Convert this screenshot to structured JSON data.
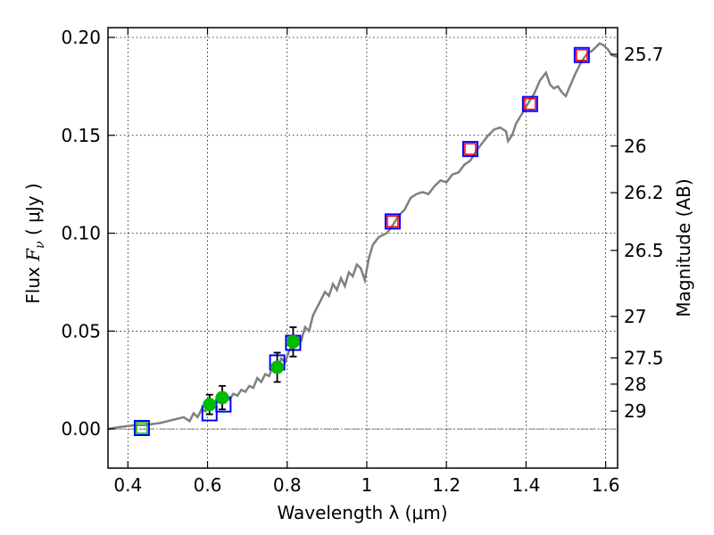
{
  "chart_data": {
    "type": "scatter",
    "xlabel": "Wavelength  λ (μm)",
    "ylabel_left": {
      "prefix": "Flux  ",
      "symbol": "F",
      "subscript": "ν",
      "unit": "  ( μJy )"
    },
    "ylabel_right": "Magnitude (AB)",
    "xlim": [
      0.35,
      1.63
    ],
    "ylim": [
      -0.02,
      0.205
    ],
    "x_ticks": [
      {
        "value": 0.4,
        "label": "0.4"
      },
      {
        "value": 0.6,
        "label": "0.6"
      },
      {
        "value": 0.8,
        "label": "0.8"
      },
      {
        "value": 1.0,
        "label": "1"
      },
      {
        "value": 1.2,
        "label": "1.2"
      },
      {
        "value": 1.4,
        "label": "1.4"
      },
      {
        "value": 1.6,
        "label": "1.6"
      }
    ],
    "y_ticks": [
      {
        "value": 0.0,
        "label": "0.00"
      },
      {
        "value": 0.05,
        "label": "0.05"
      },
      {
        "value": 0.1,
        "label": "0.10"
      },
      {
        "value": 0.15,
        "label": "0.15"
      },
      {
        "value": 0.2,
        "label": "0.20"
      }
    ],
    "right_ticks": [
      {
        "flux": 0.1914,
        "label": "25.7"
      },
      {
        "flux": 0.1445,
        "label": "26"
      },
      {
        "flux": 0.1207,
        "label": "26.2"
      },
      {
        "flux": 0.0912,
        "label": "26.5"
      },
      {
        "flux": 0.0575,
        "label": "27"
      },
      {
        "flux": 0.0363,
        "label": "27.5"
      },
      {
        "flux": 0.0229,
        "label": "28"
      },
      {
        "flux": 0.0091,
        "label": "29"
      }
    ],
    "grid": true,
    "zero_line": true,
    "model_spectrum": {
      "color": "#808080",
      "points": [
        [
          0.35,
          0.0
        ],
        [
          0.38,
          0.001
        ],
        [
          0.4,
          0.0015
        ],
        [
          0.42,
          0.002
        ],
        [
          0.44,
          0.002
        ],
        [
          0.46,
          0.0025
        ],
        [
          0.48,
          0.003
        ],
        [
          0.5,
          0.004
        ],
        [
          0.52,
          0.005
        ],
        [
          0.54,
          0.006
        ],
        [
          0.555,
          0.004
        ],
        [
          0.565,
          0.008
        ],
        [
          0.575,
          0.006
        ],
        [
          0.585,
          0.01
        ],
        [
          0.595,
          0.009
        ],
        [
          0.605,
          0.012
        ],
        [
          0.615,
          0.011
        ],
        [
          0.625,
          0.014
        ],
        [
          0.635,
          0.013
        ],
        [
          0.645,
          0.016
        ],
        [
          0.655,
          0.015
        ],
        [
          0.665,
          0.018
        ],
        [
          0.675,
          0.017
        ],
        [
          0.685,
          0.02
        ],
        [
          0.695,
          0.019
        ],
        [
          0.705,
          0.022
        ],
        [
          0.715,
          0.021
        ],
        [
          0.725,
          0.026
        ],
        [
          0.735,
          0.024
        ],
        [
          0.745,
          0.028
        ],
        [
          0.755,
          0.027
        ],
        [
          0.765,
          0.033
        ],
        [
          0.775,
          0.031
        ],
        [
          0.785,
          0.036
        ],
        [
          0.795,
          0.034
        ],
        [
          0.805,
          0.04
        ],
        [
          0.815,
          0.043
        ],
        [
          0.825,
          0.047
        ],
        [
          0.835,
          0.045
        ],
        [
          0.845,
          0.052
        ],
        [
          0.855,
          0.05
        ],
        [
          0.865,
          0.058
        ],
        [
          0.875,
          0.062
        ],
        [
          0.885,
          0.066
        ],
        [
          0.895,
          0.07
        ],
        [
          0.905,
          0.068
        ],
        [
          0.915,
          0.074
        ],
        [
          0.925,
          0.071
        ],
        [
          0.935,
          0.077
        ],
        [
          0.945,
          0.073
        ],
        [
          0.955,
          0.08
        ],
        [
          0.965,
          0.078
        ],
        [
          0.975,
          0.084
        ],
        [
          0.985,
          0.082
        ],
        [
          0.995,
          0.076
        ],
        [
          1.005,
          0.087
        ],
        [
          1.015,
          0.094
        ],
        [
          1.03,
          0.098
        ],
        [
          1.05,
          0.1
        ],
        [
          1.065,
          0.104
        ],
        [
          1.08,
          0.109
        ],
        [
          1.095,
          0.112
        ],
        [
          1.11,
          0.118
        ],
        [
          1.125,
          0.12
        ],
        [
          1.14,
          0.121
        ],
        [
          1.155,
          0.12
        ],
        [
          1.17,
          0.124
        ],
        [
          1.185,
          0.127
        ],
        [
          1.2,
          0.126
        ],
        [
          1.215,
          0.13
        ],
        [
          1.23,
          0.131
        ],
        [
          1.245,
          0.135
        ],
        [
          1.26,
          0.137
        ],
        [
          1.275,
          0.142
        ],
        [
          1.29,
          0.146
        ],
        [
          1.305,
          0.15
        ],
        [
          1.32,
          0.153
        ],
        [
          1.335,
          0.154
        ],
        [
          1.35,
          0.152
        ],
        [
          1.355,
          0.147
        ],
        [
          1.365,
          0.15
        ],
        [
          1.375,
          0.156
        ],
        [
          1.39,
          0.161
        ],
        [
          1.41,
          0.168
        ],
        [
          1.42,
          0.171
        ],
        [
          1.435,
          0.178
        ],
        [
          1.45,
          0.182
        ],
        [
          1.46,
          0.176
        ],
        [
          1.47,
          0.174
        ],
        [
          1.48,
          0.175
        ],
        [
          1.49,
          0.172
        ],
        [
          1.5,
          0.17
        ],
        [
          1.51,
          0.175
        ],
        [
          1.525,
          0.182
        ],
        [
          1.54,
          0.188
        ],
        [
          1.555,
          0.192
        ],
        [
          1.565,
          0.193
        ],
        [
          1.575,
          0.195
        ],
        [
          1.585,
          0.197
        ],
        [
          1.595,
          0.196
        ],
        [
          1.605,
          0.194
        ],
        [
          1.615,
          0.191
        ],
        [
          1.63,
          0.19
        ]
      ]
    },
    "photometry": {
      "color": "#00bb00",
      "points": [
        {
          "x": 0.605,
          "y": 0.0125,
          "yerr": 0.005
        },
        {
          "x": 0.637,
          "y": 0.016,
          "yerr": 0.006
        },
        {
          "x": 0.775,
          "y": 0.0315,
          "yerr": 0.0075
        },
        {
          "x": 0.815,
          "y": 0.0445,
          "yerr": 0.0075
        }
      ]
    },
    "model_photometry_blue": {
      "color": "#0000ff",
      "points": [
        {
          "x": 0.435,
          "y": 0.0005
        },
        {
          "x": 0.605,
          "y": 0.008
        },
        {
          "x": 0.64,
          "y": 0.0125
        },
        {
          "x": 0.775,
          "y": 0.034
        },
        {
          "x": 0.815,
          "y": 0.044
        },
        {
          "x": 1.065,
          "y": 0.106
        },
        {
          "x": 1.26,
          "y": 0.143
        },
        {
          "x": 1.41,
          "y": 0.166
        },
        {
          "x": 1.54,
          "y": 0.191
        }
      ]
    },
    "model_photometry_red": {
      "color": "#ff0000",
      "points": [
        {
          "x": 1.065,
          "y": 0.106
        },
        {
          "x": 1.26,
          "y": 0.143
        },
        {
          "x": 1.41,
          "y": 0.166
        },
        {
          "x": 1.54,
          "y": 0.191
        }
      ]
    },
    "model_photometry_green": {
      "color": "#00bb00",
      "points": [
        {
          "x": 0.435,
          "y": 0.0005
        }
      ]
    }
  }
}
